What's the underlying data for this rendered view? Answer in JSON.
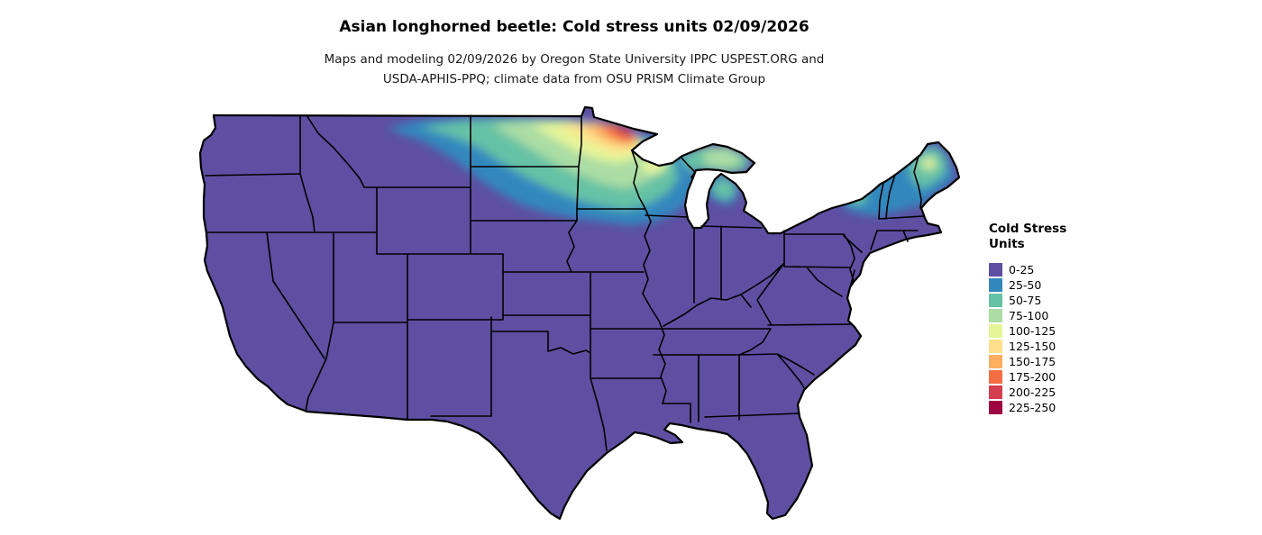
{
  "page": {
    "background_color": "#ffffff"
  },
  "header": {
    "title": "Asian longhorned beetle: Cold stress units 02/09/2026",
    "subtitle_line1": "Maps and modeling 02/09/2026 by Oregon State University IPPC USPEST.ORG and",
    "subtitle_line2": "USDA-APHIS-PPQ; climate data from OSU PRISM Climate Group"
  },
  "legend": {
    "title_line1": "Cold Stress",
    "title_line2": "Units",
    "items": [
      {
        "label": "0-25",
        "color": "#5E4FA2"
      },
      {
        "label": "25-50",
        "color": "#3288BD"
      },
      {
        "label": "50-75",
        "color": "#66C2A5"
      },
      {
        "label": "75-100",
        "color": "#ABDDA4"
      },
      {
        "label": "100-125",
        "color": "#E6F598"
      },
      {
        "label": "125-150",
        "color": "#FEE08B"
      },
      {
        "label": "150-175",
        "color": "#FDAE61"
      },
      {
        "label": "175-200",
        "color": "#F46D43"
      },
      {
        "label": "200-225",
        "color": "#D53E4F"
      },
      {
        "label": "225-250",
        "color": "#9E0142"
      }
    ]
  },
  "map": {
    "region": "Continental United States",
    "base_color": "#5E4FA2",
    "border_color": "#000000",
    "observations": [
      {
        "region": "Most of the continental US",
        "cold_stress_units": "0-25"
      },
      {
        "region": "Eastern Montana and western North Dakota",
        "cold_stress_units": "25-50"
      },
      {
        "region": "Eastern South Dakota and southern Minnesota",
        "cold_stress_units": "25-50"
      },
      {
        "region": "Central North Dakota and central Minnesota",
        "cold_stress_units": "50-100"
      },
      {
        "region": "Northern Minnesota hotspot",
        "cold_stress_units": "125-225"
      },
      {
        "region": "Northern Wisconsin and Upper Michigan",
        "cold_stress_units": "50-150"
      },
      {
        "region": "Northern Lower Michigan",
        "cold_stress_units": "25-75"
      },
      {
        "region": "Adirondacks, northern New York",
        "cold_stress_units": "25-75"
      },
      {
        "region": "Northern Vermont and New Hampshire",
        "cold_stress_units": "25-75"
      },
      {
        "region": "Interior Maine",
        "cold_stress_units": "50-125"
      }
    ]
  },
  "chart_data": {
    "type": "heatmap",
    "title": "Asian longhorned beetle: Cold stress units 02/09/2026",
    "legend_title": "Cold Stress Units",
    "classes": [
      "0-25",
      "25-50",
      "50-75",
      "75-100",
      "100-125",
      "125-150",
      "150-175",
      "175-200",
      "200-225",
      "225-250"
    ],
    "palette": [
      "#5E4FA2",
      "#3288BD",
      "#66C2A5",
      "#ABDDA4",
      "#E6F598",
      "#FEE08B",
      "#FDAE61",
      "#F46D43",
      "#D53E4F",
      "#9E0142"
    ],
    "legend_position": "right"
  }
}
